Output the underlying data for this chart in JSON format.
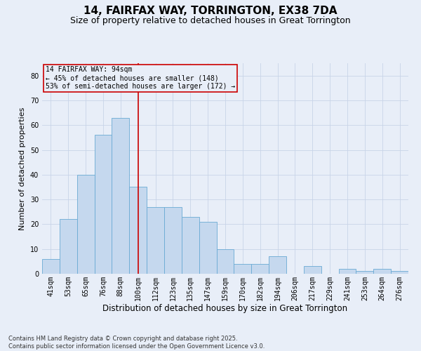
{
  "title": "14, FAIRFAX WAY, TORRINGTON, EX38 7DA",
  "subtitle": "Size of property relative to detached houses in Great Torrington",
  "xlabel": "Distribution of detached houses by size in Great Torrington",
  "ylabel": "Number of detached properties",
  "categories": [
    "41sqm",
    "53sqm",
    "65sqm",
    "76sqm",
    "88sqm",
    "100sqm",
    "112sqm",
    "123sqm",
    "135sqm",
    "147sqm",
    "159sqm",
    "170sqm",
    "182sqm",
    "194sqm",
    "206sqm",
    "217sqm",
    "229sqm",
    "241sqm",
    "253sqm",
    "264sqm",
    "276sqm"
  ],
  "values": [
    6,
    22,
    40,
    56,
    63,
    35,
    27,
    27,
    23,
    21,
    10,
    4,
    4,
    7,
    0,
    3,
    0,
    2,
    1,
    2,
    1
  ],
  "bar_color": "#c5d8ee",
  "bar_edge_color": "#6aaad4",
  "grid_color": "#c8d4e8",
  "background_color": "#e8eef8",
  "vline_x_index": 5,
  "vline_color": "#cc0000",
  "annotation_text": "14 FAIRFAX WAY: 94sqm\n← 45% of detached houses are smaller (148)\n53% of semi-detached houses are larger (172) →",
  "annotation_box_color": "#cc0000",
  "ylim": [
    0,
    85
  ],
  "yticks": [
    0,
    10,
    20,
    30,
    40,
    50,
    60,
    70,
    80
  ],
  "footnote": "Contains HM Land Registry data © Crown copyright and database right 2025.\nContains public sector information licensed under the Open Government Licence v3.0.",
  "title_fontsize": 11,
  "subtitle_fontsize": 9,
  "xlabel_fontsize": 8.5,
  "ylabel_fontsize": 8,
  "tick_fontsize": 7,
  "annotation_fontsize": 7,
  "footnote_fontsize": 6
}
